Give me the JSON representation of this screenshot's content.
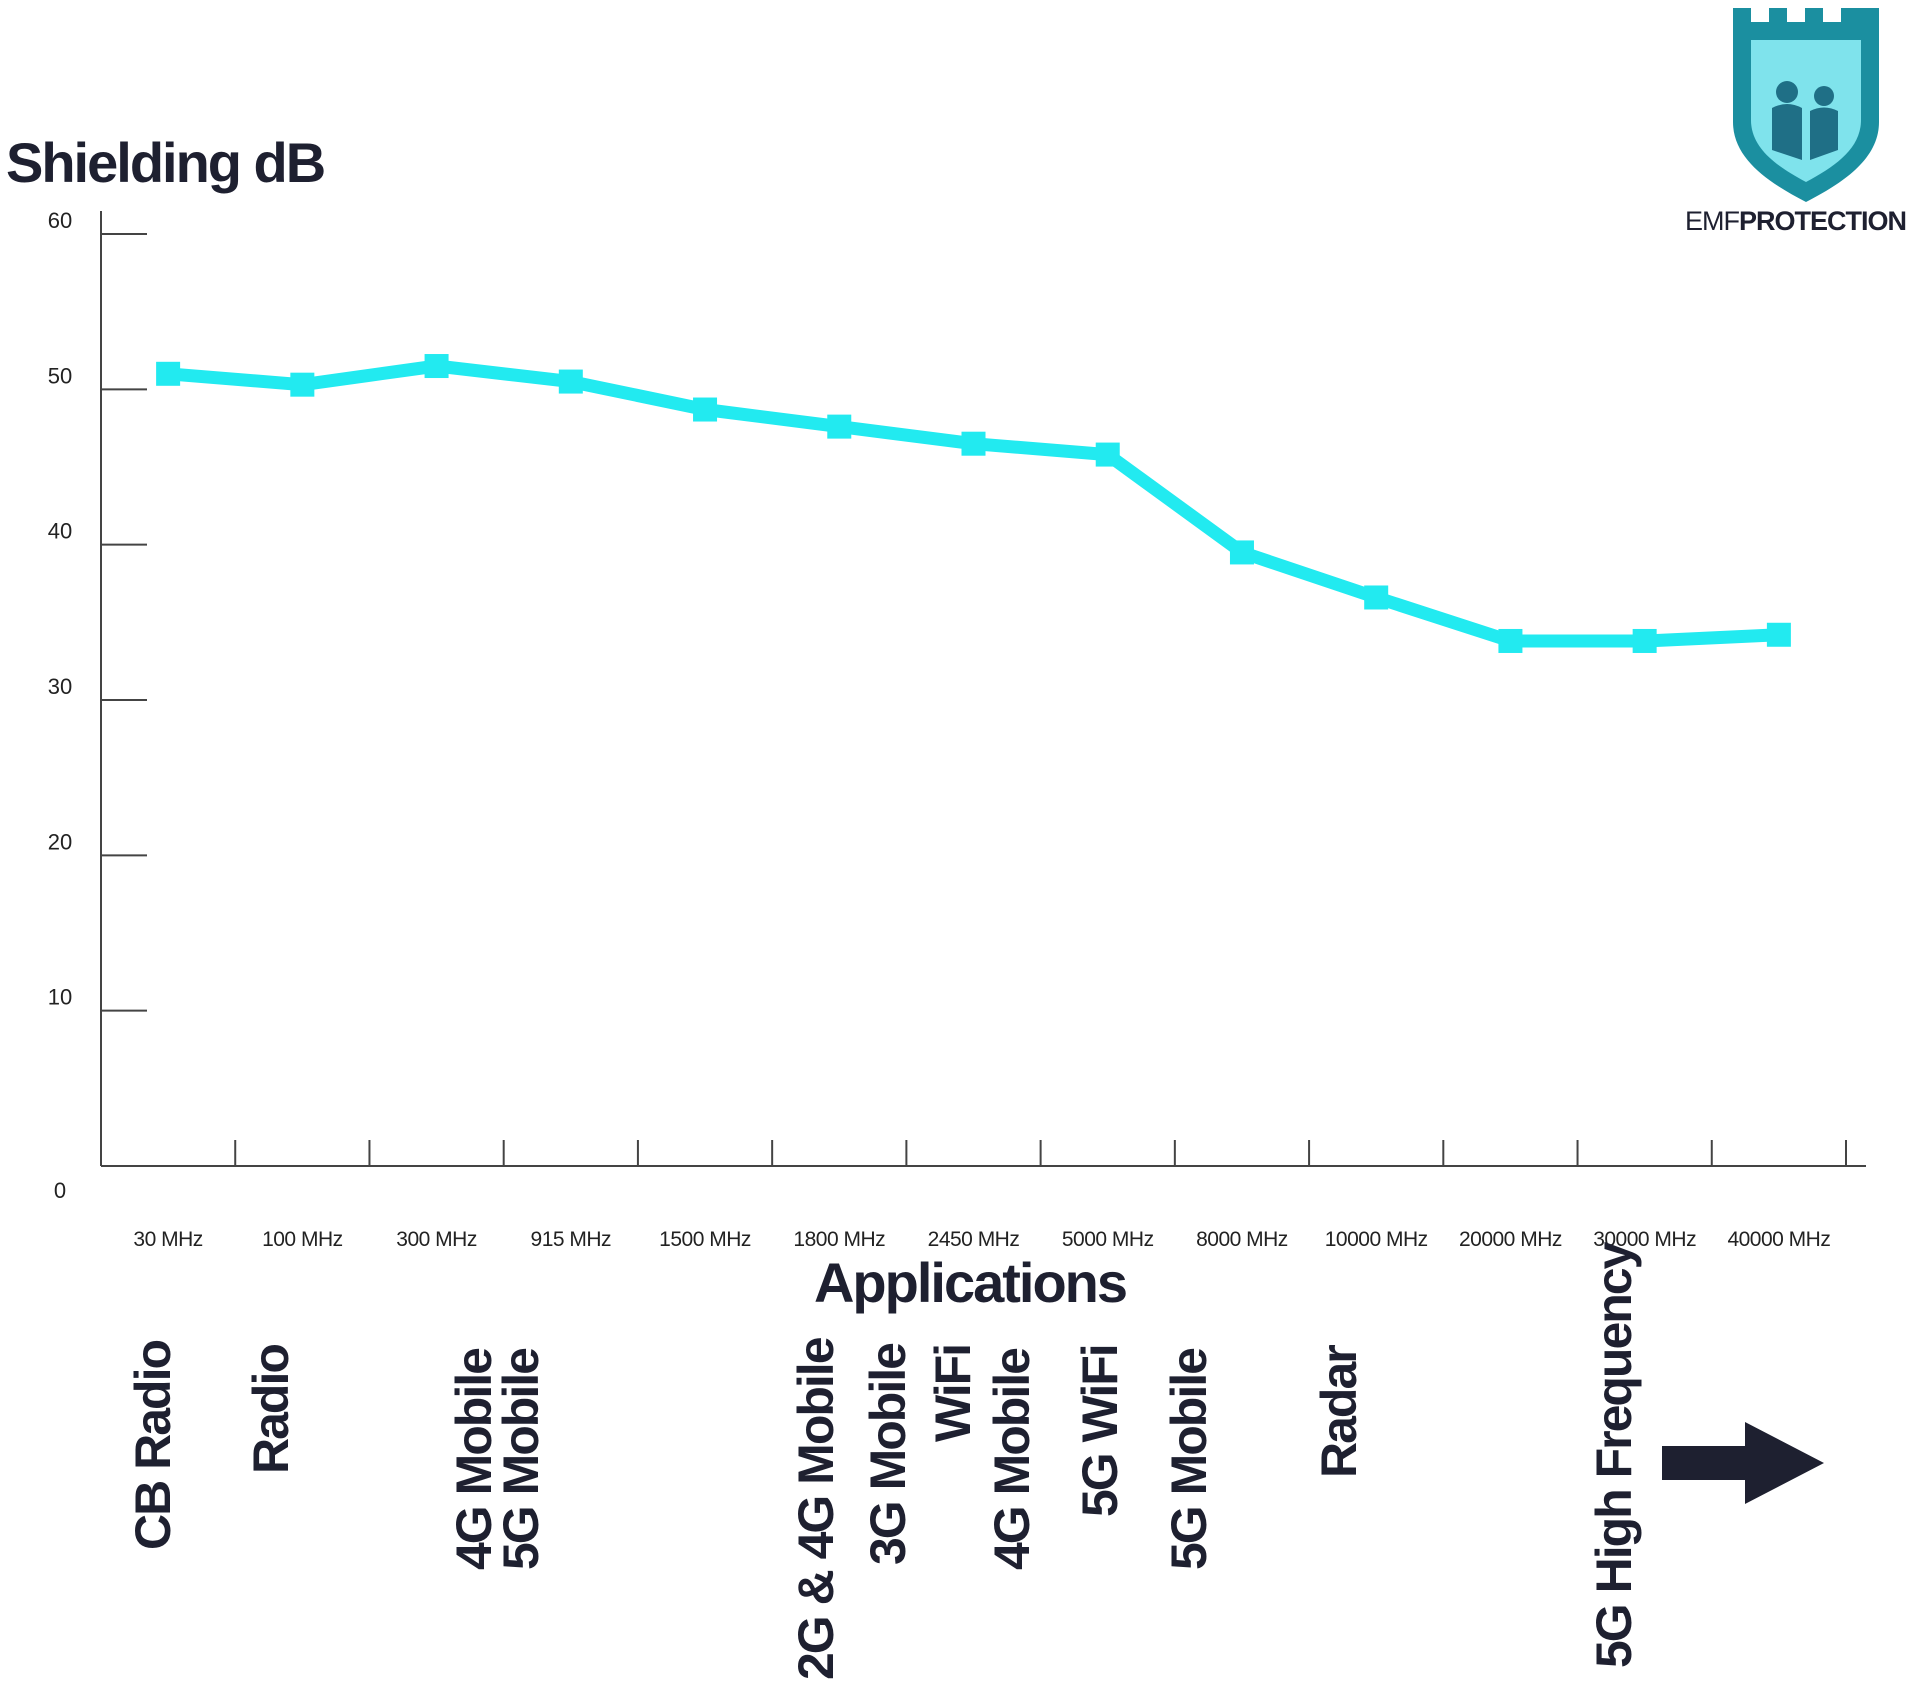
{
  "logo": {
    "text_light": "EMF",
    "text_bold": "PROTECTION",
    "colors": {
      "shield_light": "#7fe3ec",
      "shield_dark": "#1b8fa0",
      "figure": "#1f6f86"
    }
  },
  "chart_data": {
    "type": "line",
    "title": "",
    "ylabel": "Shielding dB",
    "xlabel": "Applications",
    "ylim": [
      0,
      60
    ],
    "yticks": [
      "0",
      "10",
      "20",
      "30",
      "40",
      "50",
      "60"
    ],
    "categories": [
      "30 MHz",
      "100 MHz",
      "300 MHz",
      "915 MHz",
      "1500 MHz",
      "1800 MHz",
      "2450 MHz",
      "5000 MHz",
      "8000 MHz",
      "10000 MHz",
      "20000 MHz",
      "30000 MHz",
      "40000 MHz"
    ],
    "series": [
      {
        "color": "#22eaf0",
        "values": [
          51,
          50.3,
          51.5,
          50.5,
          48.7,
          47.6,
          46.5,
          45.8,
          39.5,
          36.6,
          33.8,
          33.8,
          34.2
        ]
      }
    ],
    "grid": false,
    "applications": [
      {
        "label": "CB Radio"
      },
      {
        "label": "Radio"
      },
      {
        "label": "4G Mobile"
      },
      {
        "label": "5G Mobile"
      },
      {
        "label": "2G & 4G Mobile"
      },
      {
        "label": "3G Mobile"
      },
      {
        "label": "WiFi"
      },
      {
        "label": "4G Mobile"
      },
      {
        "label": "5G WiFi"
      },
      {
        "label": "5G Mobile"
      },
      {
        "label": "Radar"
      },
      {
        "label": "5G High Frequency"
      }
    ],
    "arrow_color": "#1e2030"
  }
}
